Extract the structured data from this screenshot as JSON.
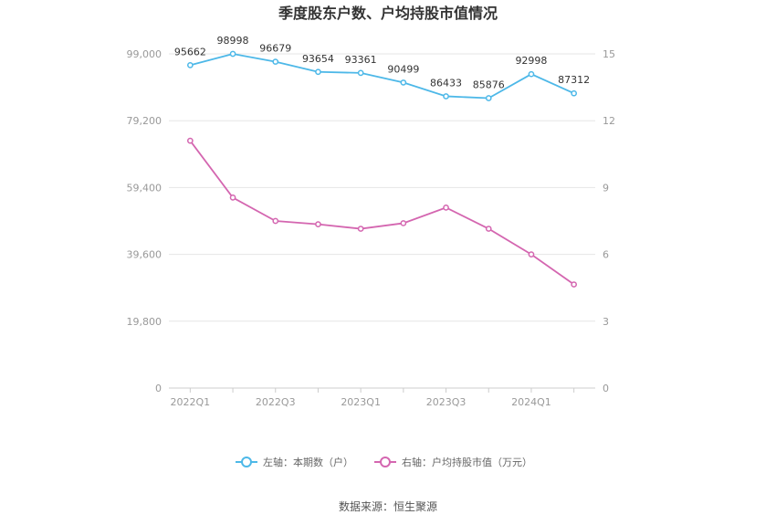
{
  "chart_data": {
    "type": "line",
    "title": "季度股东户数、户均持股市值情况",
    "categories": [
      "2022Q1",
      "2022Q2",
      "2022Q3",
      "2022Q4",
      "2023Q1",
      "2023Q2",
      "2023Q3",
      "2023Q4",
      "2024Q1",
      "2024Q2"
    ],
    "x_tick_labels": [
      "2022Q1",
      "2022Q3",
      "2023Q1",
      "2023Q3",
      "2024Q1"
    ],
    "y_left": {
      "ylim": [
        0,
        99000
      ],
      "ticks": [
        "0",
        "19,800",
        "39,600",
        "59,400",
        "79,200",
        "99,000"
      ],
      "tick_values": [
        0,
        19800,
        39600,
        59400,
        79200,
        99000
      ]
    },
    "y_right": {
      "ylim": [
        0,
        15
      ],
      "ticks": [
        "0",
        "3",
        "6",
        "9",
        "12",
        "15"
      ],
      "tick_values": [
        0,
        3,
        6,
        9,
        12,
        15
      ]
    },
    "series": [
      {
        "name": "左轴：本期数（户）",
        "axis": "left",
        "color": "#4db8e8",
        "values": [
          95662,
          98998,
          96679,
          93654,
          93361,
          90499,
          86433,
          85876,
          92998,
          87312
        ],
        "labels": [
          "95662",
          "98998",
          "96679",
          "93654",
          "93361",
          "90499",
          "86433",
          "85876",
          "92998",
          "87312"
        ]
      },
      {
        "name": "右轴：户均持股市值（万元）",
        "axis": "right",
        "color": "#d466b0",
        "values": [
          11.1,
          8.55,
          7.5,
          7.35,
          7.15,
          7.4,
          8.1,
          7.15,
          6.0,
          4.65
        ]
      }
    ],
    "legend_position": "bottom",
    "grid": true
  },
  "footer": {
    "source": "数据来源：恒生聚源"
  }
}
